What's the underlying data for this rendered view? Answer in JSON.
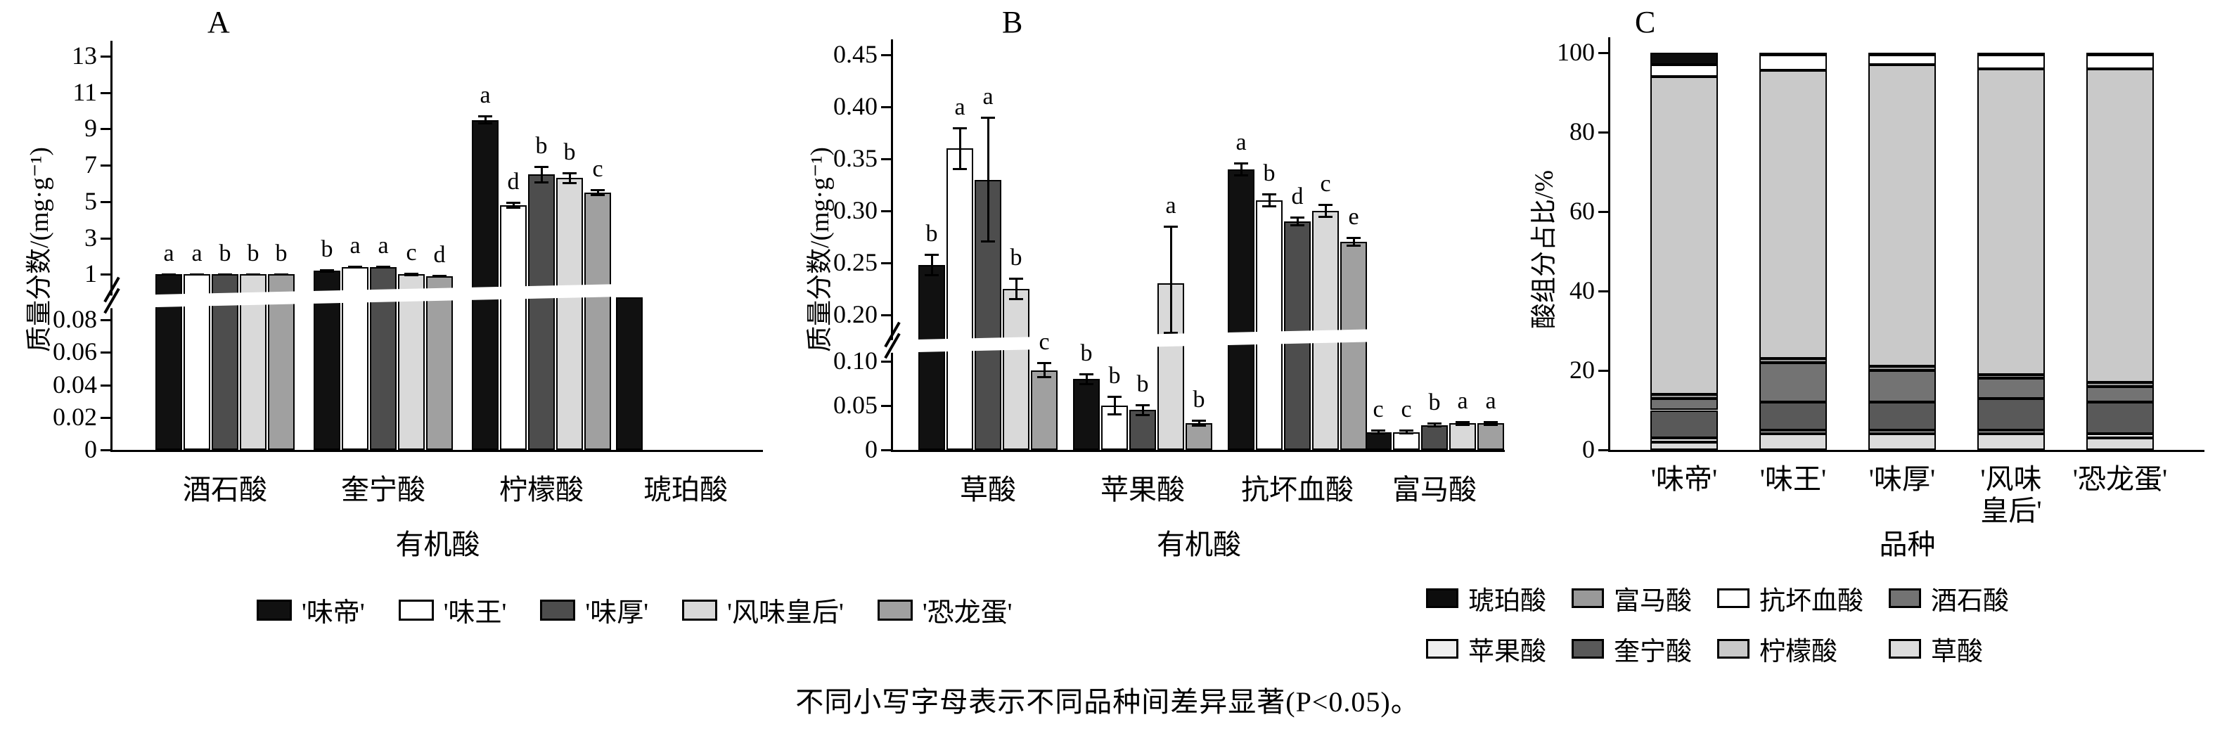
{
  "caption": "不同小写字母表示不同品种间差异显著(P<0.05)。",
  "variety_legend": [
    {
      "label": "'味帝'",
      "color": "#111111"
    },
    {
      "label": "'味王'",
      "color": "#ffffff"
    },
    {
      "label": "'味厚'",
      "color": "#4d4d4d"
    },
    {
      "label": "'风味皇后'",
      "color": "#d9d9d9"
    },
    {
      "label": "'恐龙蛋'",
      "color": "#a0a0a0"
    }
  ],
  "acid_legend": [
    {
      "label": "琥珀酸",
      "color": "#0d0d0d"
    },
    {
      "label": "富马酸",
      "color": "#999999"
    },
    {
      "label": "抗坏血酸",
      "color": "#ffffff"
    },
    {
      "label": "酒石酸",
      "color": "#737373"
    },
    {
      "label": "苹果酸",
      "color": "#efefef"
    },
    {
      "label": "奎宁酸",
      "color": "#595959"
    },
    {
      "label": "柠檬酸",
      "color": "#c9c9c9"
    },
    {
      "label": "草酸",
      "color": "#dcdcdc"
    }
  ],
  "chart_data": [
    {
      "panel": "A",
      "type": "bar",
      "ylabel": "质量分数/(mg·g⁻¹)",
      "xlabel": "有机酸",
      "categories": [
        "酒石酸",
        "奎宁酸",
        "柠檬酸",
        "琥珀酸"
      ],
      "ylim_lower": [
        0,
        0.09
      ],
      "ylim_upper": [
        0.4,
        13
      ],
      "yticks_lower": [
        [
          0,
          "0"
        ],
        [
          0.02,
          "0.02"
        ],
        [
          0.04,
          "0.04"
        ],
        [
          0.06,
          "0.06"
        ],
        [
          0.08,
          "0.08"
        ]
      ],
      "yticks_upper": [
        [
          1,
          "1"
        ],
        [
          3,
          "3"
        ],
        [
          5,
          "5"
        ],
        [
          7,
          "7"
        ],
        [
          9,
          "9"
        ],
        [
          11,
          "11"
        ],
        [
          13,
          "13"
        ]
      ],
      "series": [
        {
          "name": "'味帝'",
          "values": [
            1.0,
            1.2,
            9.5,
            0.2
          ],
          "errors": [
            0.03,
            0.05,
            0.2,
            0
          ],
          "letters": [
            "a",
            "b",
            "a",
            ""
          ]
        },
        {
          "name": "'味王'",
          "values": [
            1.0,
            1.4,
            4.8,
            0
          ],
          "errors": [
            0.03,
            0.05,
            0.15,
            0
          ],
          "letters": [
            "a",
            "a",
            "d",
            ""
          ]
        },
        {
          "name": "'味厚'",
          "values": [
            1.0,
            1.4,
            6.5,
            0
          ],
          "errors": [
            0.03,
            0.05,
            0.45,
            0
          ],
          "letters": [
            "b",
            "a",
            "b",
            ""
          ]
        },
        {
          "name": "'风味皇后'",
          "values": [
            1.0,
            1.0,
            6.3,
            0
          ],
          "errors": [
            0.03,
            0.04,
            0.3,
            0
          ],
          "letters": [
            "b",
            "c",
            "b",
            ""
          ]
        },
        {
          "name": "'恐龙蛋'",
          "values": [
            1.0,
            0.9,
            5.5,
            0
          ],
          "errors": [
            0.03,
            0.03,
            0.15,
            0
          ],
          "letters": [
            "b",
            "d",
            "c",
            ""
          ]
        }
      ]
    },
    {
      "panel": "B",
      "type": "bar",
      "ylabel": "质量分数/(mg·g⁻¹)",
      "xlabel": "有机酸",
      "categories": [
        "草酸",
        "苹果酸",
        "抗坏血酸",
        "富马酸"
      ],
      "ylim_lower": [
        0,
        0.115
      ],
      "ylim_upper": [
        0.185,
        0.45
      ],
      "yticks_lower": [
        [
          0,
          "0"
        ],
        [
          0.05,
          "0.05"
        ],
        [
          0.1,
          "0.10"
        ]
      ],
      "yticks_upper": [
        [
          0.2,
          "0.20"
        ],
        [
          0.25,
          "0.25"
        ],
        [
          0.3,
          "0.30"
        ],
        [
          0.35,
          "0.35"
        ],
        [
          0.4,
          "0.40"
        ],
        [
          0.45,
          "0.45"
        ]
      ],
      "series": [
        {
          "name": "'味帝'",
          "values": [
            0.248,
            0.08,
            0.34,
            0.02
          ],
          "errors": [
            0.01,
            0.006,
            0.006,
            0.002
          ],
          "letters": [
            "b",
            "b",
            "a",
            "c"
          ]
        },
        {
          "name": "'味王'",
          "values": [
            0.36,
            0.05,
            0.31,
            0.02
          ],
          "errors": [
            0.02,
            0.01,
            0.006,
            0.002
          ],
          "letters": [
            "a",
            "b",
            "b",
            "c"
          ]
        },
        {
          "name": "'味厚'",
          "values": [
            0.33,
            0.045,
            0.29,
            0.028
          ],
          "errors": [
            0.06,
            0.006,
            0.004,
            0.002
          ],
          "letters": [
            "a",
            "b",
            "d",
            "b"
          ]
        },
        {
          "name": "'风味皇后'",
          "values": [
            0.225,
            0.23,
            0.3,
            0.03
          ],
          "errors": [
            0.01,
            0.055,
            0.006,
            0.002
          ],
          "letters": [
            "b",
            "a",
            "c",
            "a"
          ]
        },
        {
          "name": "'恐龙蛋'",
          "values": [
            0.09,
            0.03,
            0.27,
            0.03
          ],
          "errors": [
            0.008,
            0.003,
            0.004,
            0.002
          ],
          "letters": [
            "c",
            "b",
            "e",
            "a"
          ]
        }
      ]
    },
    {
      "panel": "C",
      "type": "stacked-bar",
      "ylabel": "酸组分占比/%",
      "xlabel": "品种",
      "categories": [
        "'味帝'",
        "'味王'",
        "'味厚'",
        "'风味\n皇后'",
        "'恐龙蛋'"
      ],
      "ylim": [
        0,
        100
      ],
      "yticks": [
        [
          0,
          "0"
        ],
        [
          20,
          "20"
        ],
        [
          40,
          "40"
        ],
        [
          60,
          "60"
        ],
        [
          80,
          "80"
        ],
        [
          100,
          "100"
        ]
      ],
      "segments": [
        {
          "name": "草酸",
          "values": [
            2,
            4,
            4,
            4,
            3
          ]
        },
        {
          "name": "苹果酸",
          "values": [
            1,
            1,
            1,
            1,
            1
          ]
        },
        {
          "name": "奎宁酸",
          "values": [
            7,
            7,
            7,
            8,
            8
          ]
        },
        {
          "name": "酒石酸",
          "values": [
            3,
            10,
            8,
            5,
            4
          ]
        },
        {
          "name": "富马酸",
          "values": [
            1,
            1,
            1,
            1,
            1
          ]
        },
        {
          "name": "柠檬酸",
          "values": [
            80,
            72.5,
            76,
            77,
            79
          ]
        },
        {
          "name": "抗坏血酸",
          "values": [
            3,
            4,
            2.5,
            3.5,
            3.5
          ]
        },
        {
          "name": "琥珀酸",
          "values": [
            3,
            0.5,
            0.5,
            0.5,
            0.5
          ]
        }
      ]
    }
  ]
}
